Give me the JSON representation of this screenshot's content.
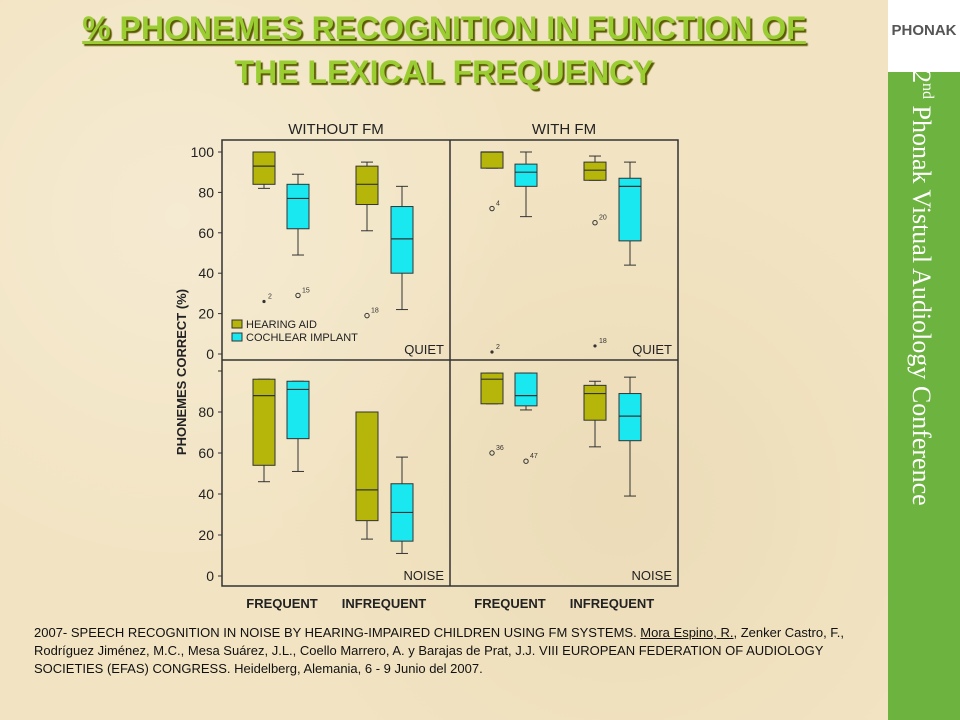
{
  "title_line1": "% PHONEMES RECOGNITION IN FUNCTION OF",
  "title_line2": "THE LEXICAL FREQUENCY",
  "logo_text": "PHONAK",
  "conference_ord": "2",
  "conference_sup": "nd",
  "conference_rest": " Phonak Vistual Audiology Conference",
  "citation": {
    "part1": "2007- SPEECH RECOGNITION IN NOISE BY HEARING-IMPAIRED CHILDREN USING FM SYSTEMS. ",
    "underlined": "Mora Espino, R.",
    "part2": ", Zenker Castro, F., Rodríguez Jiménez, M.C., Mesa Suárez, J.L., Coello Marrero, A. y Barajas de Prat, J.J. VIII EUROPEAN FEDERATION OF AUDIOLOGY SOCIETIES (EFAS) CONGRESS. Heidelberg, Alemania, 6 - 9 Junio del 2007."
  },
  "colors": {
    "hearing_aid": "#b5b50a",
    "cochlear_implant": "#19e8f0",
    "title": "#9acd32",
    "sidebar": "#6cb33f"
  },
  "chart_data": {
    "type": "boxplot",
    "ylabel": "PHONEMES CORRECT (%)",
    "column_titles": [
      "WITHOUT FM",
      "WITH FM"
    ],
    "categories": [
      "FREQUENT",
      "INFREQUENT"
    ],
    "legend": [
      "HEARING AID",
      "COCHLEAR IMPLANT"
    ],
    "yticks_top": [
      0,
      20,
      40,
      60,
      80,
      100
    ],
    "yticks_bottom": [
      0,
      20,
      40,
      60,
      80
    ],
    "ylim": [
      0,
      100
    ],
    "panels": [
      {
        "row": 0,
        "col": 0,
        "condition": "QUIET",
        "boxes": [
          {
            "category": "FREQUENT",
            "group": "HEARING AID",
            "min": 82,
            "q1": 84,
            "median": 93,
            "q3": 100,
            "max": 100
          },
          {
            "category": "FREQUENT",
            "group": "COCHLEAR IMPLANT",
            "min": 49,
            "q1": 62,
            "median": 77,
            "q3": 84,
            "max": 89
          },
          {
            "category": "INFREQUENT",
            "group": "HEARING AID",
            "min": 61,
            "q1": 74,
            "median": 84,
            "q3": 93,
            "max": 95
          },
          {
            "category": "INFREQUENT",
            "group": "COCHLEAR IMPLANT",
            "min": 22,
            "q1": 40,
            "median": 57,
            "q3": 73,
            "max": 83
          }
        ],
        "outliers": [
          {
            "category": "FREQUENT",
            "group": "HEARING AID",
            "value": 26,
            "label": "2",
            "marker": "dot"
          },
          {
            "category": "FREQUENT",
            "group": "COCHLEAR IMPLANT",
            "value": 29,
            "label": "15",
            "marker": "circle"
          },
          {
            "category": "INFREQUENT",
            "group": "HEARING AID",
            "value": 19,
            "label": "18",
            "marker": "circle"
          }
        ]
      },
      {
        "row": 0,
        "col": 1,
        "condition": "QUIET",
        "boxes": [
          {
            "category": "FREQUENT",
            "group": "HEARING AID",
            "min": 92,
            "q1": 92,
            "median": 100,
            "q3": 100,
            "max": 100
          },
          {
            "category": "FREQUENT",
            "group": "COCHLEAR IMPLANT",
            "min": 68,
            "q1": 83,
            "median": 90,
            "q3": 94,
            "max": 100
          },
          {
            "category": "INFREQUENT",
            "group": "HEARING AID",
            "min": 86,
            "q1": 86,
            "median": 91,
            "q3": 95,
            "max": 98
          },
          {
            "category": "INFREQUENT",
            "group": "COCHLEAR IMPLANT",
            "min": 44,
            "q1": 56,
            "median": 83,
            "q3": 87,
            "max": 95
          }
        ],
        "outliers": [
          {
            "category": "FREQUENT",
            "group": "HEARING AID",
            "value": 72,
            "label": "4",
            "marker": "circle"
          },
          {
            "category": "FREQUENT",
            "group": "HEARING AID",
            "value": 1,
            "label": "2",
            "marker": "dot"
          },
          {
            "category": "INFREQUENT",
            "group": "HEARING AID",
            "value": 65,
            "label": "20",
            "marker": "circle"
          },
          {
            "category": "INFREQUENT",
            "group": "HEARING AID",
            "value": 4,
            "label": "18",
            "marker": "dot"
          }
        ]
      },
      {
        "row": 1,
        "col": 0,
        "condition": "NOISE",
        "boxes": [
          {
            "category": "FREQUENT",
            "group": "HEARING AID",
            "min": 46,
            "q1": 54,
            "median": 88,
            "q3": 96,
            "max": 96
          },
          {
            "category": "FREQUENT",
            "group": "COCHLEAR IMPLANT",
            "min": 51,
            "q1": 67,
            "median": 91,
            "q3": 95,
            "max": 95
          },
          {
            "category": "INFREQUENT",
            "group": "HEARING AID",
            "min": 18,
            "q1": 27,
            "median": 42,
            "q3": 80,
            "max": 80
          },
          {
            "category": "INFREQUENT",
            "group": "COCHLEAR IMPLANT",
            "min": 11,
            "q1": 17,
            "median": 31,
            "q3": 45,
            "max": 58
          }
        ],
        "outliers": []
      },
      {
        "row": 1,
        "col": 1,
        "condition": "NOISE",
        "boxes": [
          {
            "category": "FREQUENT",
            "group": "HEARING AID",
            "min": 84,
            "q1": 84,
            "median": 96,
            "q3": 99,
            "max": 99
          },
          {
            "category": "FREQUENT",
            "group": "COCHLEAR IMPLANT",
            "min": 81,
            "q1": 83,
            "median": 88,
            "q3": 99,
            "max": 99
          },
          {
            "category": "INFREQUENT",
            "group": "HEARING AID",
            "min": 63,
            "q1": 76,
            "median": 89,
            "q3": 93,
            "max": 95
          },
          {
            "category": "INFREQUENT",
            "group": "COCHLEAR IMPLANT",
            "min": 39,
            "q1": 66,
            "median": 78,
            "q3": 89,
            "max": 97
          }
        ],
        "outliers": [
          {
            "category": "FREQUENT",
            "group": "HEARING AID",
            "value": 60,
            "label": "36",
            "marker": "circle"
          },
          {
            "category": "FREQUENT",
            "group": "COCHLEAR IMPLANT",
            "value": 56,
            "label": "47",
            "marker": "circle"
          }
        ]
      }
    ]
  }
}
